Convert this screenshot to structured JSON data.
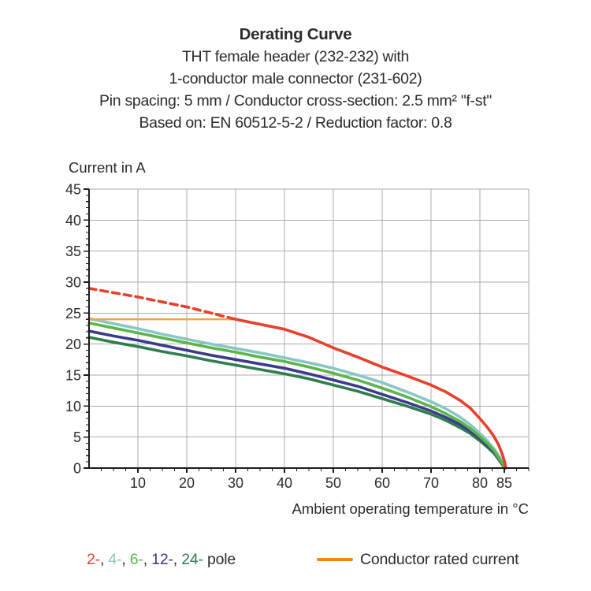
{
  "header": {
    "title": "Derating Curve",
    "subtitle_lines": [
      "THT female header (232-232) with",
      "1-conductor male connector (231-602)",
      "Pin spacing: 5 mm / Conductor cross-section: 2.5 mm² \"f-st\"",
      "Based on: EN 60512-5-2 / Reduction factor: 0.8"
    ]
  },
  "chart_data": {
    "type": "line",
    "title": "Derating Curve",
    "xlabel": "Ambient operating temperature in °C",
    "ylabel": "Current in A",
    "xlim": [
      0,
      90
    ],
    "ylim": [
      0,
      45
    ],
    "x_major_ticks": [
      10,
      20,
      30,
      40,
      50,
      60,
      70,
      80,
      85
    ],
    "x_minor_step": 2.5,
    "y_major_ticks": [
      0,
      5,
      10,
      15,
      20,
      25,
      30,
      35,
      40,
      45
    ],
    "y_minor_step": 1,
    "grid": true,
    "grid_color": "#ababab",
    "axis_color": "#1c1c1c",
    "legend_position": "bottom",
    "series": [
      {
        "name": "4-pole",
        "color": "#8ac6c6",
        "style": "solid",
        "width": 3.6,
        "points": [
          [
            0,
            24.1
          ],
          [
            5,
            23.3
          ],
          [
            10,
            22.5
          ],
          [
            15,
            21.6
          ],
          [
            20,
            20.8
          ],
          [
            25,
            20.0
          ],
          [
            30,
            19.3
          ],
          [
            35,
            18.6
          ],
          [
            40,
            17.8
          ],
          [
            45,
            17.0
          ],
          [
            50,
            16.1
          ],
          [
            55,
            15.0
          ],
          [
            60,
            13.8
          ],
          [
            65,
            12.3
          ],
          [
            70,
            10.7
          ],
          [
            73,
            9.6
          ],
          [
            76,
            8.2
          ],
          [
            78,
            7.0
          ],
          [
            80,
            5.6
          ],
          [
            81.5,
            4.4
          ],
          [
            83,
            3.0
          ],
          [
            84,
            1.8
          ],
          [
            84.8,
            0.7
          ],
          [
            85,
            0
          ]
        ]
      },
      {
        "name": "24-pole",
        "color": "#2f7d4c",
        "style": "solid",
        "width": 3.6,
        "points": [
          [
            0,
            21.1
          ],
          [
            5,
            20.3
          ],
          [
            10,
            19.6
          ],
          [
            15,
            18.8
          ],
          [
            20,
            18.1
          ],
          [
            25,
            17.3
          ],
          [
            30,
            16.6
          ],
          [
            35,
            15.9
          ],
          [
            40,
            15.2
          ],
          [
            45,
            14.4
          ],
          [
            50,
            13.4
          ],
          [
            55,
            12.4
          ],
          [
            60,
            11.2
          ],
          [
            65,
            10.0
          ],
          [
            70,
            8.7
          ],
          [
            73,
            7.7
          ],
          [
            76,
            6.5
          ],
          [
            78,
            5.6
          ],
          [
            80,
            4.4
          ],
          [
            81.5,
            3.4
          ],
          [
            83,
            2.3
          ],
          [
            84,
            1.2
          ],
          [
            84.8,
            0.3
          ],
          [
            85,
            0
          ]
        ]
      },
      {
        "name": "12-pole",
        "color": "#3b3b8e",
        "style": "solid",
        "width": 3.6,
        "points": [
          [
            0,
            22.1
          ],
          [
            5,
            21.3
          ],
          [
            10,
            20.6
          ],
          [
            15,
            19.8
          ],
          [
            20,
            19.0
          ],
          [
            25,
            18.2
          ],
          [
            30,
            17.5
          ],
          [
            35,
            16.8
          ],
          [
            40,
            16.1
          ],
          [
            45,
            15.2
          ],
          [
            50,
            14.2
          ],
          [
            55,
            13.2
          ],
          [
            60,
            11.9
          ],
          [
            65,
            10.6
          ],
          [
            70,
            9.2
          ],
          [
            73,
            8.2
          ],
          [
            76,
            7.0
          ],
          [
            78,
            6.0
          ],
          [
            80,
            4.8
          ],
          [
            81.5,
            3.7
          ],
          [
            83,
            2.5
          ],
          [
            84,
            1.4
          ],
          [
            84.8,
            0.4
          ],
          [
            85,
            0
          ]
        ]
      },
      {
        "name": "6-pole",
        "color": "#5cb54a",
        "style": "solid",
        "width": 3.6,
        "points": [
          [
            0,
            23.4
          ],
          [
            5,
            22.6
          ],
          [
            10,
            21.8
          ],
          [
            15,
            21.0
          ],
          [
            20,
            20.2
          ],
          [
            25,
            19.4
          ],
          [
            30,
            18.7
          ],
          [
            35,
            17.9
          ],
          [
            40,
            17.2
          ],
          [
            45,
            16.3
          ],
          [
            50,
            15.3
          ],
          [
            55,
            14.2
          ],
          [
            60,
            12.9
          ],
          [
            65,
            11.5
          ],
          [
            70,
            9.9
          ],
          [
            73,
            8.8
          ],
          [
            76,
            7.5
          ],
          [
            78,
            6.4
          ],
          [
            80,
            5.1
          ],
          [
            81.5,
            4.0
          ],
          [
            83,
            2.7
          ],
          [
            84,
            1.5
          ],
          [
            84.8,
            0.5
          ],
          [
            85,
            0
          ]
        ]
      },
      {
        "name": "Conductor rated current",
        "color": "#f5a43c",
        "style": "solid",
        "width": 2.4,
        "points": [
          [
            0,
            24
          ],
          [
            30.5,
            24
          ]
        ]
      },
      {
        "name": "2-pole dashed segment",
        "color": "#e8402c",
        "style": "dashed",
        "width": 3.6,
        "points": [
          [
            0,
            29.0
          ],
          [
            5,
            28.3
          ],
          [
            10,
            27.6
          ],
          [
            15,
            26.8
          ],
          [
            20,
            26.0
          ],
          [
            25,
            25.0
          ],
          [
            30,
            24.0
          ]
        ]
      },
      {
        "name": "2-pole",
        "color": "#e8402c",
        "style": "solid",
        "width": 3.6,
        "points": [
          [
            30,
            24.0
          ],
          [
            35,
            23.2
          ],
          [
            40,
            22.4
          ],
          [
            45,
            21.1
          ],
          [
            50,
            19.4
          ],
          [
            55,
            17.9
          ],
          [
            60,
            16.3
          ],
          [
            65,
            14.9
          ],
          [
            70,
            13.4
          ],
          [
            73,
            12.3
          ],
          [
            76,
            10.9
          ],
          [
            78,
            9.7
          ],
          [
            80,
            8.0
          ],
          [
            81.5,
            6.6
          ],
          [
            82.8,
            5.2
          ],
          [
            83.8,
            3.8
          ],
          [
            84.6,
            2.2
          ],
          [
            85.1,
            0.9
          ],
          [
            85.3,
            0
          ]
        ]
      }
    ]
  },
  "legend": {
    "poles": [
      {
        "label": "2-",
        "color": "#e8402c"
      },
      {
        "label": "4-",
        "color": "#8ac6c6"
      },
      {
        "label": "6-",
        "color": "#5cb54a"
      },
      {
        "label": "12-",
        "color": "#3b3b8e"
      },
      {
        "label": "24-",
        "color": "#2f7d4c"
      }
    ],
    "separator": ", ",
    "suffix": " pole",
    "rated_current": {
      "label": "Conductor rated current",
      "color": "#ef851c"
    }
  }
}
